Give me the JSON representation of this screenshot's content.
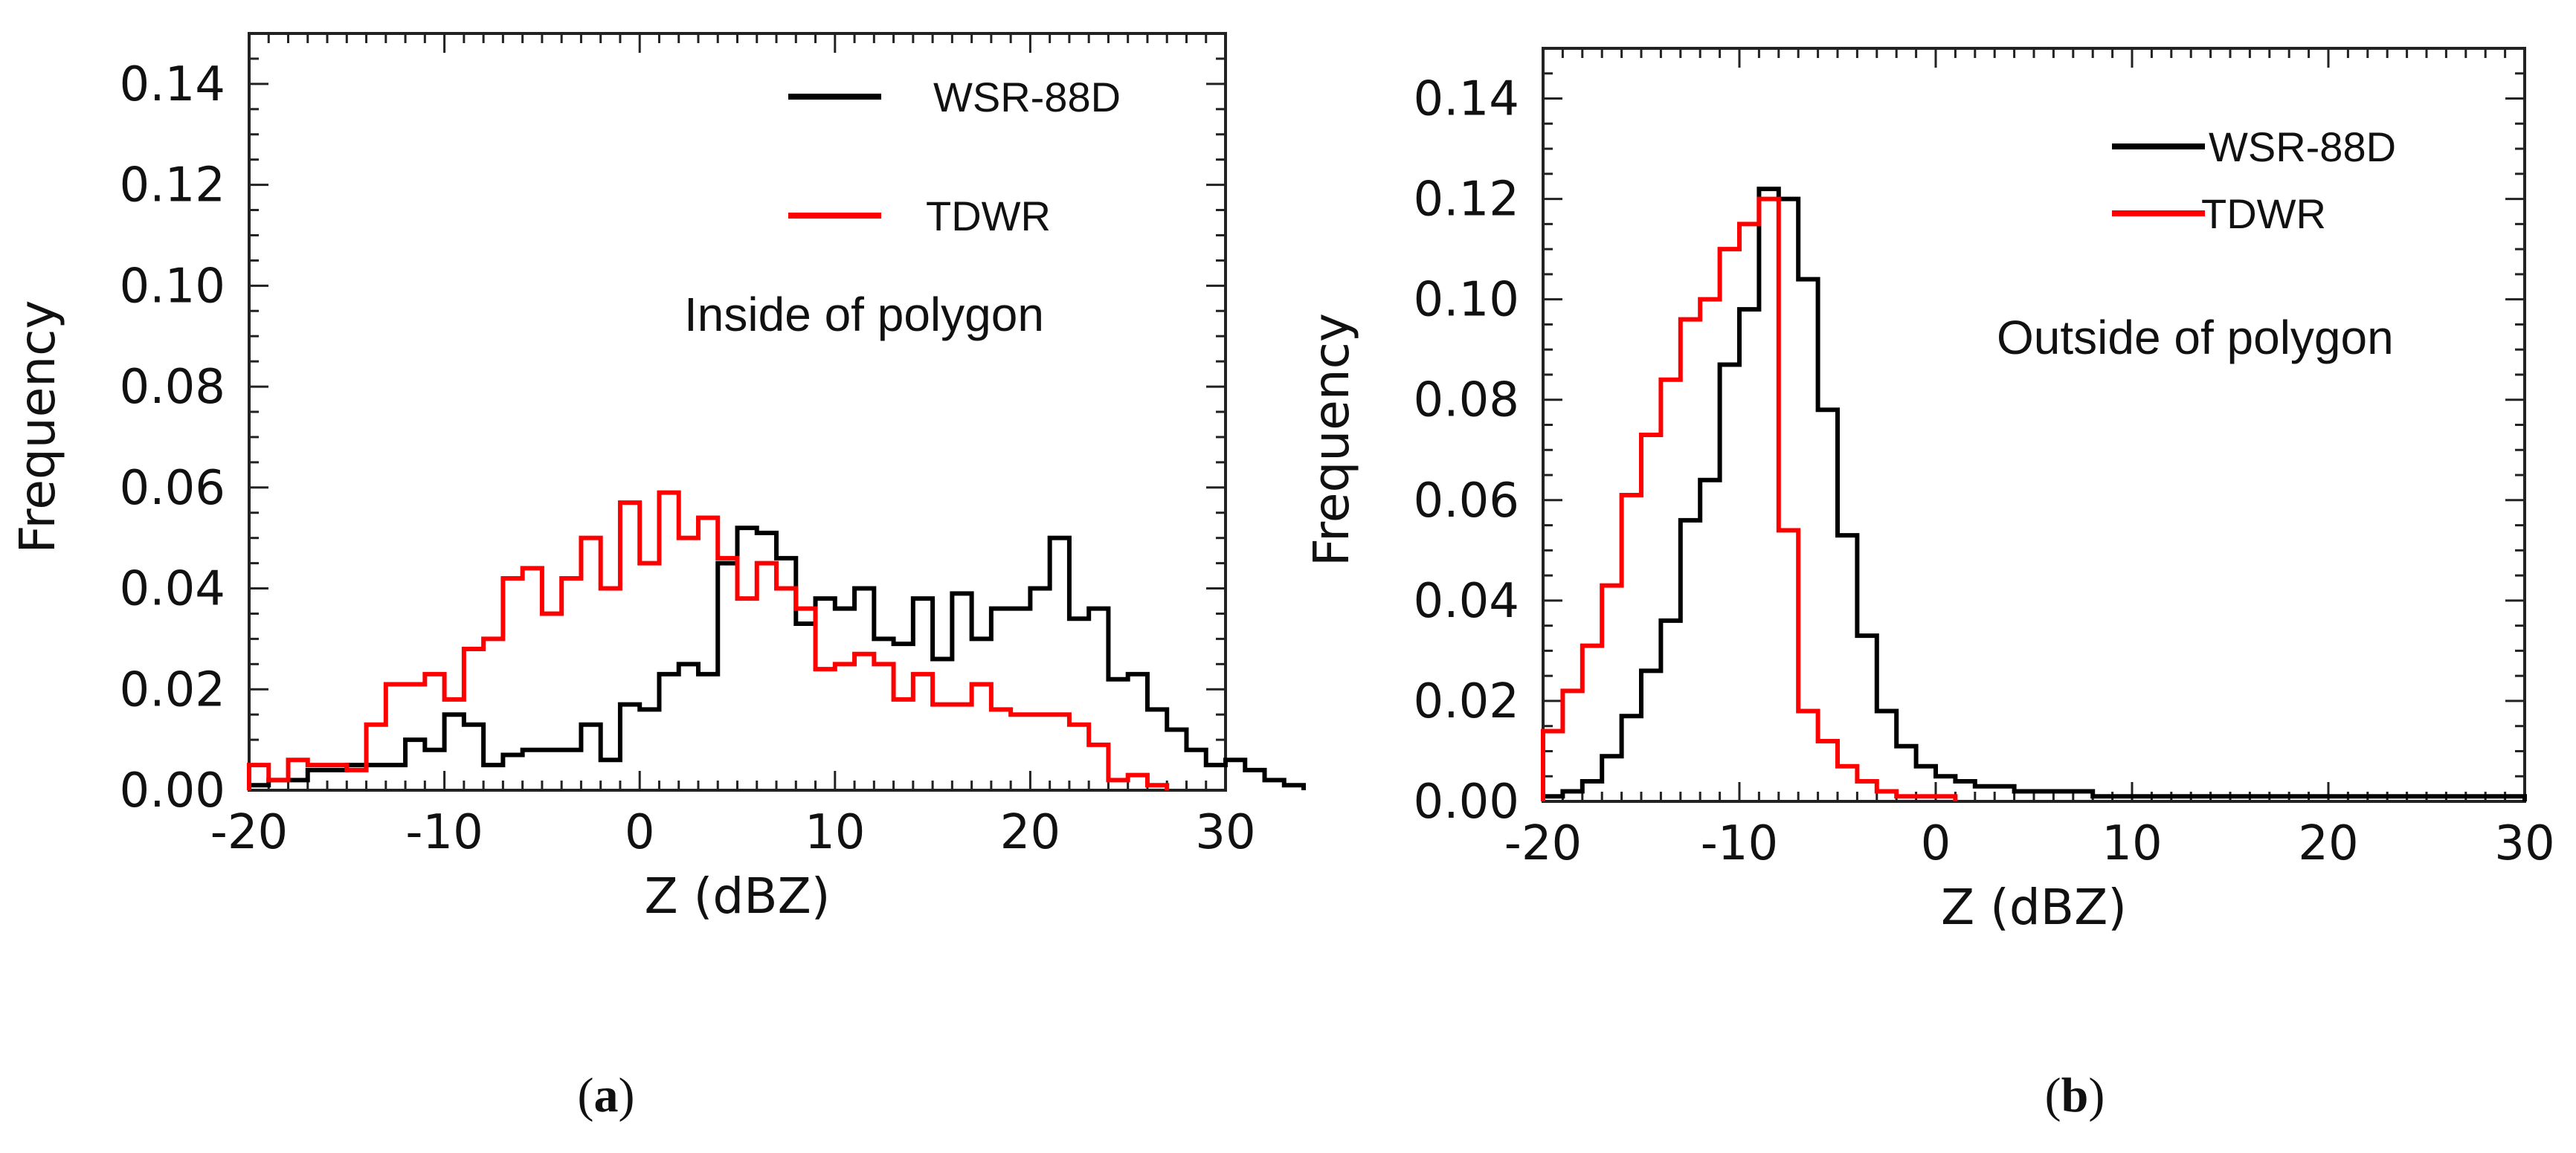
{
  "chart_data": [
    {
      "type": "histogram",
      "panel_label": "a",
      "annotation": "Inside of polygon",
      "xlabel": "Z (dBZ)",
      "ylabel": "Frequency",
      "xlim": [
        -20,
        30
      ],
      "ylim": [
        0,
        0.15
      ],
      "xticks": [
        "-20",
        "-10",
        "0",
        "10",
        "20",
        "30"
      ],
      "yticks": [
        "0.00",
        "0.02",
        "0.04",
        "0.06",
        "0.08",
        "0.10",
        "0.12",
        "0.14"
      ],
      "legend_position": "top-right",
      "bin_width": 1,
      "series": [
        {
          "name": "WSR-88D",
          "color": "#000000",
          "bin_start": -20,
          "values": [
            0.001,
            0.002,
            0.002,
            0.004,
            0.004,
            0.005,
            0.005,
            0.005,
            0.01,
            0.008,
            0.015,
            0.013,
            0.005,
            0.007,
            0.008,
            0.008,
            0.008,
            0.013,
            0.006,
            0.017,
            0.016,
            0.023,
            0.025,
            0.023,
            0.045,
            0.052,
            0.051,
            0.046,
            0.033,
            0.038,
            0.036,
            0.04,
            0.03,
            0.029,
            0.038,
            0.026,
            0.039,
            0.03,
            0.036,
            0.036,
            0.04,
            0.05,
            0.034,
            0.036,
            0.022,
            0.023,
            0.016,
            0.012,
            0.008,
            0.005,
            0.006,
            0.004,
            0.002,
            0.001
          ]
        },
        {
          "name": "TDWR",
          "color": "#ff0000",
          "bin_start": -20,
          "values": [
            0.005,
            0.002,
            0.006,
            0.005,
            0.005,
            0.004,
            0.013,
            0.021,
            0.021,
            0.023,
            0.018,
            0.028,
            0.03,
            0.042,
            0.044,
            0.035,
            0.042,
            0.05,
            0.04,
            0.057,
            0.045,
            0.059,
            0.05,
            0.054,
            0.046,
            0.038,
            0.045,
            0.04,
            0.036,
            0.024,
            0.025,
            0.027,
            0.025,
            0.018,
            0.023,
            0.017,
            0.017,
            0.021,
            0.016,
            0.015,
            0.015,
            0.015,
            0.013,
            0.009,
            0.002,
            0.003,
            0.001
          ]
        }
      ]
    },
    {
      "type": "histogram",
      "panel_label": "b",
      "annotation": "Outside of polygon",
      "xlabel": "Z (dBZ)",
      "ylabel": "Frequency",
      "xlim": [
        -20,
        30
      ],
      "ylim": [
        0,
        0.15
      ],
      "xticks": [
        "-20",
        "-10",
        "0",
        "10",
        "20",
        "30"
      ],
      "yticks": [
        "0.00",
        "0.02",
        "0.04",
        "0.06",
        "0.08",
        "0.10",
        "0.12",
        "0.14"
      ],
      "legend_position": "top-right",
      "bin_width": 1,
      "series": [
        {
          "name": "WSR-88D",
          "color": "#000000",
          "bin_start": -20,
          "values": [
            0.001,
            0.002,
            0.004,
            0.009,
            0.017,
            0.026,
            0.036,
            0.056,
            0.064,
            0.087,
            0.098,
            0.122,
            0.12,
            0.104,
            0.078,
            0.053,
            0.033,
            0.018,
            0.011,
            0.007,
            0.005,
            0.004,
            0.003,
            0.003,
            0.002,
            0.002,
            0.002,
            0.002,
            0.001,
            0.001,
            0.001,
            0.001,
            0.001,
            0.001,
            0.001,
            0.001,
            0.001,
            0.001,
            0.001,
            0.001,
            0.001,
            0.001,
            0.001,
            0.001,
            0.001,
            0.001,
            0.001,
            0.001,
            0.001,
            0.001
          ]
        },
        {
          "name": "TDWR",
          "color": "#ff0000",
          "bin_start": -20,
          "values": [
            0.014,
            0.022,
            0.031,
            0.043,
            0.061,
            0.073,
            0.084,
            0.096,
            0.1,
            0.11,
            0.115,
            0.12,
            0.054,
            0.018,
            0.012,
            0.007,
            0.004,
            0.002,
            0.001,
            0.001,
            0.001
          ]
        }
      ]
    }
  ]
}
